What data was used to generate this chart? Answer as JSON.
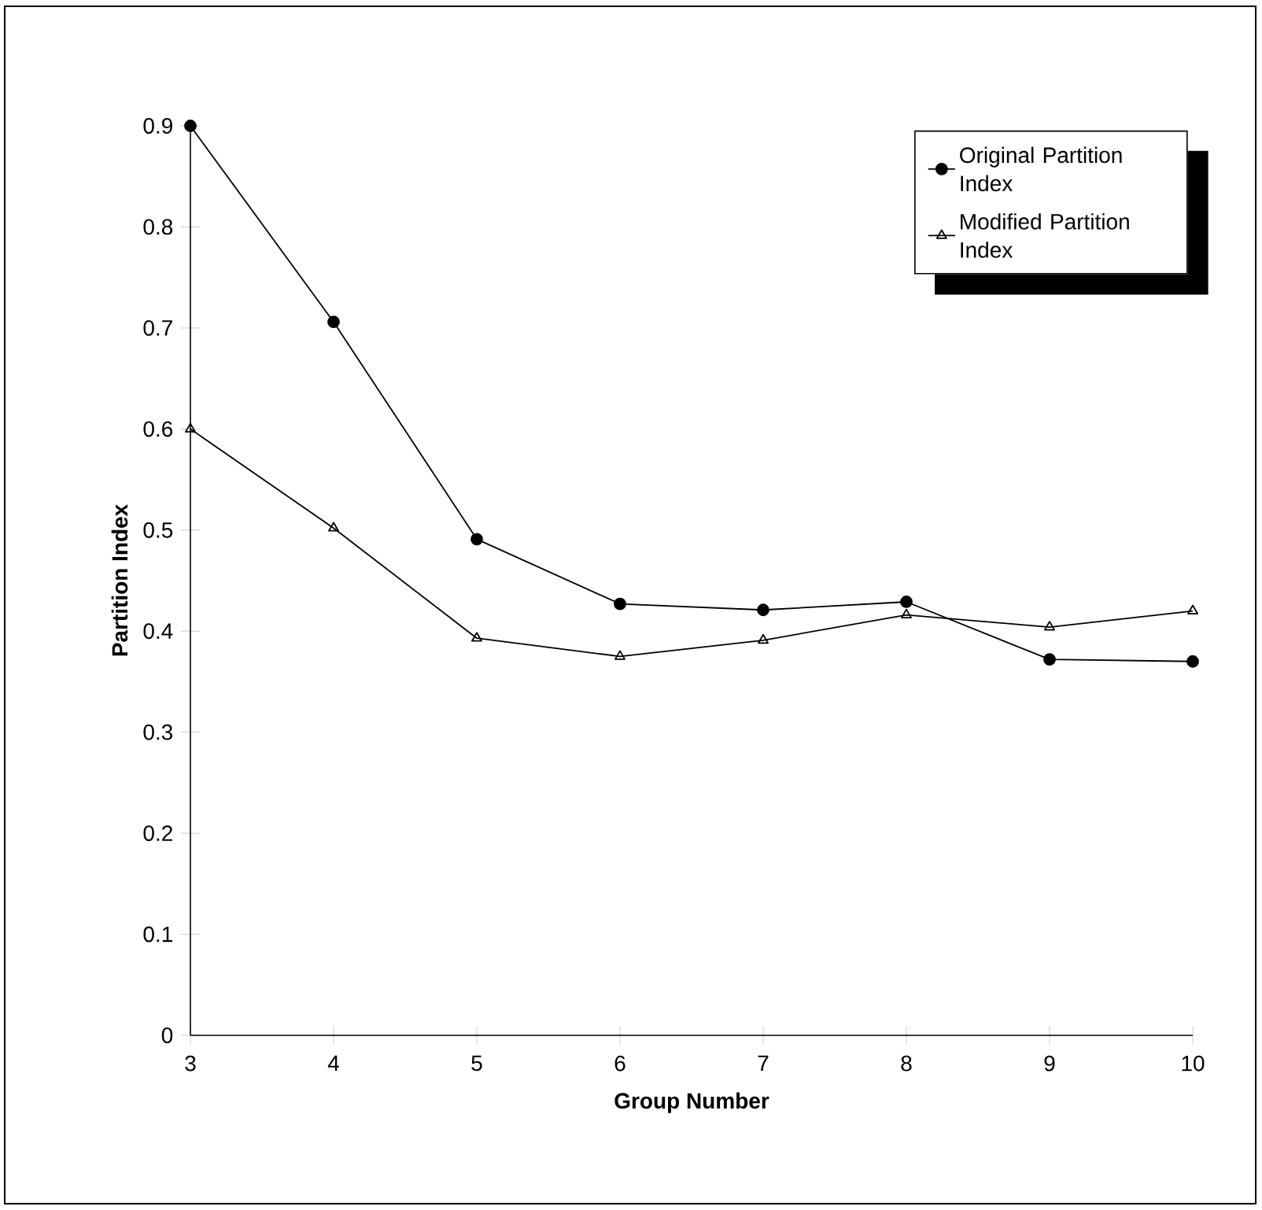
{
  "chart_data": {
    "type": "line",
    "xlabel": "Group Number",
    "ylabel": "Partition Index",
    "x": [
      3,
      4,
      5,
      6,
      7,
      8,
      9,
      10
    ],
    "series": [
      {
        "name": "Original Partition Index",
        "color": "#000000",
        "marker": "circle",
        "values": [
          0.9,
          0.706,
          0.491,
          0.427,
          0.421,
          0.429,
          0.372,
          0.37
        ]
      },
      {
        "name": "Modified Partition Index",
        "color": "#000000",
        "marker": "triangle",
        "values": [
          0.6,
          0.502,
          0.393,
          0.375,
          0.391,
          0.416,
          0.404,
          0.42
        ]
      }
    ],
    "xlim": [
      3,
      10
    ],
    "ylim": [
      0,
      0.9
    ],
    "xticks": [
      3,
      4,
      5,
      6,
      7,
      8,
      9,
      10
    ],
    "yticks": [
      0,
      0.1,
      0.2,
      0.3,
      0.4,
      0.5,
      0.6,
      0.7,
      0.8,
      0.9
    ],
    "grid": false,
    "legend": "top right",
    "line_style": "solid"
  }
}
